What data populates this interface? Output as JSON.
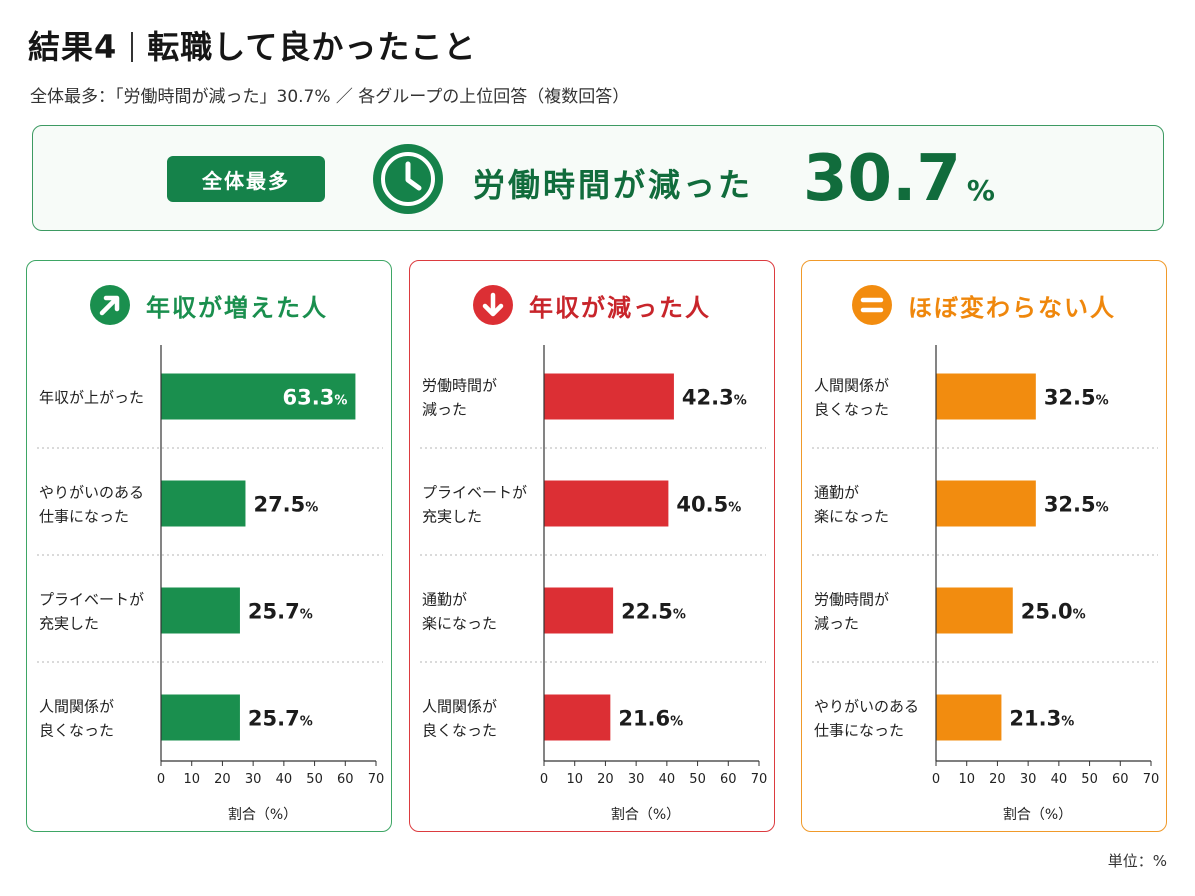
{
  "title": {
    "main": "結果4",
    "sub": "転職して良かったこと"
  },
  "subtitle": "全体最多：「労働時間が減った」30.7% ／ 各グループの上位回答（複数回答）",
  "banner": {
    "tag": "全体最多",
    "icon": "clock-icon",
    "label": "労働時間が減った",
    "value": "30.7",
    "unit": "%"
  },
  "unit_note": "単位：%",
  "colors": {
    "green": "#1a8f4e",
    "red": "#dc2f34",
    "orange": "#f28c0f"
  },
  "chart_data": [
    {
      "type": "bar",
      "orientation": "horizontal",
      "title": "年収が増えた人",
      "icon": "arrow-up-right-icon",
      "categories": [
        [
          "年収が上がった"
        ],
        [
          "やりがいのある",
          "仕事になった"
        ],
        [
          "プライベートが",
          "充実した"
        ],
        [
          "人間関係が",
          "良くなった"
        ]
      ],
      "values": [
        63.3,
        27.5,
        25.7,
        25.7
      ],
      "xlabel": "割合（%）",
      "xlim": [
        0,
        70
      ],
      "xticks": [
        0,
        10,
        20,
        30,
        40,
        50,
        60,
        70
      ]
    },
    {
      "type": "bar",
      "orientation": "horizontal",
      "title": "年収が減った人",
      "icon": "arrow-down-icon",
      "categories": [
        [
          "労働時間が",
          "減った"
        ],
        [
          "プライベートが",
          "充実した"
        ],
        [
          "通勤が",
          "楽になった"
        ],
        [
          "人間関係が",
          "良くなった"
        ]
      ],
      "values": [
        42.3,
        40.5,
        22.5,
        21.6
      ],
      "xlabel": "割合（%）",
      "xlim": [
        0,
        70
      ],
      "xticks": [
        0,
        10,
        20,
        30,
        40,
        50,
        60,
        70
      ]
    },
    {
      "type": "bar",
      "orientation": "horizontal",
      "title": "ほぼ変わらない人",
      "icon": "equals-icon",
      "categories": [
        [
          "人間関係が",
          "良くなった"
        ],
        [
          "通勤が",
          "楽になった"
        ],
        [
          "労働時間が",
          "減った"
        ],
        [
          "やりがいのある",
          "仕事になった"
        ]
      ],
      "values": [
        32.5,
        32.5,
        25.0,
        21.3
      ],
      "value_labels": [
        "32.5",
        "32.5",
        "25.0",
        "21.3"
      ],
      "xlabel": "割合（%）",
      "xlim": [
        0,
        70
      ],
      "xticks": [
        0,
        10,
        20,
        30,
        40,
        50,
        60,
        70
      ]
    }
  ]
}
